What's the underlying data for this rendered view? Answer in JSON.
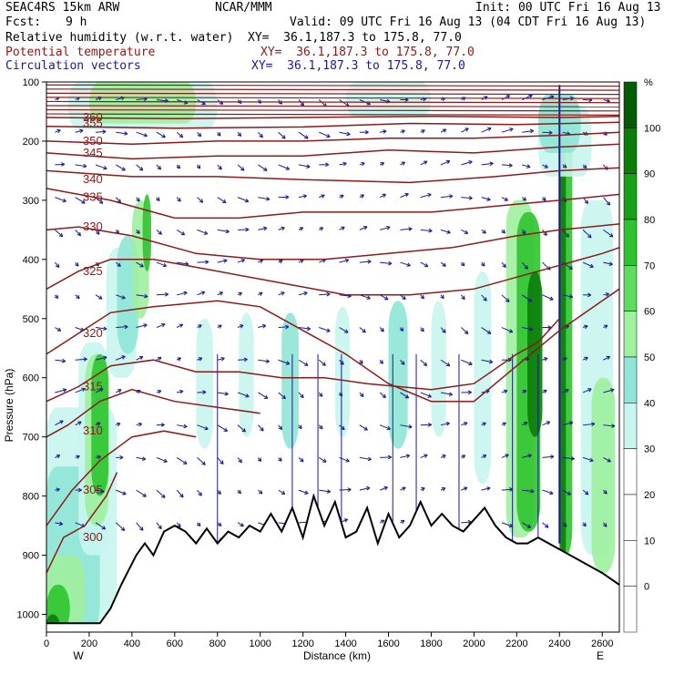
{
  "header": {
    "model": "SEAC4RS 15km ARW",
    "org": "NCAR/MMM",
    "init": "Init: 00 UTC Fri 16 Aug 13",
    "fcst_label": "Fcst:",
    "fcst_value": "9 h",
    "valid": "Valid: 09 UTC Fri 16 Aug 13 (04 CDT Fri 16 Aug 13)",
    "fields": [
      {
        "name": "Relative humidity (w.r.t. water)",
        "xy": "XY=  36.1,187.3 to 175.8, 77.0",
        "color": "#000000"
      },
      {
        "name": "Potential temperature",
        "xy": "XY=  36.1,187.3 to 175.8, 77.0",
        "color": "#8b1a1a"
      },
      {
        "name": "Circulation vectors",
        "xy": "XY=  36.1,187.3 to 175.8, 77.0",
        "color": "#1a1a8b"
      }
    ]
  },
  "chart_data": {
    "type": "cross-section",
    "xlabel": "Distance (km)",
    "ylabel": "Pressure (hPa)",
    "x_ticks": [
      0,
      200,
      400,
      600,
      800,
      1000,
      1200,
      1400,
      1600,
      1800,
      2000,
      2200,
      2400,
      2600
    ],
    "y_ticks": [
      100,
      200,
      300,
      400,
      500,
      600,
      700,
      800,
      900,
      1000
    ],
    "xlim": [
      0,
      2680
    ],
    "ylim": [
      1030,
      100
    ],
    "west_label": "W",
    "east_label": "E",
    "colorbar": {
      "unit": "%",
      "levels": [
        0,
        10,
        20,
        30,
        40,
        50,
        60,
        70,
        80,
        90,
        100
      ],
      "colors": [
        "#ffffff",
        "#ffffff",
        "#ffffff",
        "#ffffff",
        "#c8f5ee",
        "#8fe6d6",
        "#9ff09f",
        "#5fdc5f",
        "#2fc42f",
        "#17a017",
        "#0b7d0b",
        "#055a05"
      ]
    },
    "theta_contours": [
      {
        "label": "300",
        "p": 870,
        "pts": [
          [
            0,
            930
          ],
          [
            80,
            870
          ],
          [
            180,
            850
          ],
          [
            280,
            800
          ],
          [
            330,
            760
          ]
        ]
      },
      {
        "label": "305",
        "p": 790,
        "pts": [
          [
            0,
            850
          ],
          [
            120,
            790
          ],
          [
            250,
            740
          ],
          [
            400,
            700
          ],
          [
            550,
            690
          ],
          [
            700,
            700
          ]
        ]
      },
      {
        "label": "310",
        "p": 690,
        "pts": [
          [
            0,
            700
          ],
          [
            100,
            680
          ],
          [
            250,
            640
          ],
          [
            400,
            620
          ],
          [
            600,
            640
          ],
          [
            800,
            650
          ],
          [
            1000,
            660
          ]
        ]
      },
      {
        "label": "315",
        "p": 615,
        "pts": [
          [
            0,
            640
          ],
          [
            150,
            615
          ],
          [
            300,
            580
          ],
          [
            500,
            570
          ],
          [
            700,
            590
          ],
          [
            900,
            590
          ],
          [
            1100,
            600
          ],
          [
            1300,
            600
          ],
          [
            1500,
            610
          ],
          [
            1800,
            620
          ],
          [
            2000,
            610
          ],
          [
            2200,
            560
          ],
          [
            2300,
            540
          ],
          [
            2400,
            500
          ]
        ]
      },
      {
        "label": "320",
        "p": 525,
        "pts": [
          [
            0,
            560
          ],
          [
            150,
            525
          ],
          [
            300,
            490
          ],
          [
            500,
            480
          ],
          [
            800,
            470
          ],
          [
            1000,
            480
          ],
          [
            1200,
            520
          ],
          [
            1400,
            560
          ],
          [
            1600,
            610
          ],
          [
            1800,
            640
          ],
          [
            2000,
            640
          ],
          [
            2200,
            580
          ],
          [
            2400,
            520
          ],
          [
            2600,
            470
          ],
          [
            2680,
            450
          ]
        ]
      },
      {
        "label": "325",
        "p": 420,
        "pts": [
          [
            0,
            450
          ],
          [
            150,
            420
          ],
          [
            300,
            400
          ],
          [
            500,
            400
          ],
          [
            800,
            420
          ],
          [
            1100,
            440
          ],
          [
            1400,
            460
          ],
          [
            1700,
            460
          ],
          [
            2000,
            450
          ],
          [
            2200,
            430
          ],
          [
            2400,
            410
          ],
          [
            2600,
            390
          ],
          [
            2680,
            380
          ]
        ]
      },
      {
        "label": "330",
        "p": 345,
        "pts": [
          [
            0,
            350
          ],
          [
            150,
            345
          ],
          [
            400,
            360
          ],
          [
            700,
            390
          ],
          [
            1000,
            400
          ],
          [
            1300,
            400
          ],
          [
            1600,
            390
          ],
          [
            1900,
            380
          ],
          [
            2200,
            360
          ],
          [
            2400,
            350
          ],
          [
            2680,
            340
          ]
        ]
      },
      {
        "label": "335",
        "p": 295,
        "pts": [
          [
            0,
            280
          ],
          [
            300,
            300
          ],
          [
            600,
            330
          ],
          [
            900,
            330
          ],
          [
            1200,
            320
          ],
          [
            1500,
            320
          ],
          [
            1800,
            320
          ],
          [
            2100,
            310
          ],
          [
            2400,
            300
          ],
          [
            2680,
            290
          ]
        ]
      },
      {
        "label": "340",
        "p": 265,
        "pts": [
          [
            0,
            250
          ],
          [
            400,
            260
          ],
          [
            800,
            260
          ],
          [
            1200,
            265
          ],
          [
            1700,
            270
          ],
          [
            2100,
            260
          ],
          [
            2400,
            250
          ],
          [
            2680,
            245
          ]
        ]
      },
      {
        "label": "345",
        "p": 220,
        "pts": [
          [
            0,
            220
          ],
          [
            400,
            230
          ],
          [
            800,
            225
          ],
          [
            1200,
            225
          ],
          [
            1600,
            215
          ],
          [
            2000,
            220
          ],
          [
            2400,
            210
          ],
          [
            2680,
            205
          ]
        ]
      },
      {
        "label": "350",
        "p": 200,
        "pts": [
          [
            0,
            200
          ],
          [
            400,
            205
          ],
          [
            800,
            200
          ],
          [
            1200,
            200
          ],
          [
            1600,
            195
          ],
          [
            2000,
            195
          ],
          [
            2400,
            190
          ],
          [
            2680,
            185
          ]
        ]
      },
      {
        "label": "355",
        "p": 170,
        "pts": [
          [
            0,
            175
          ],
          [
            600,
            178
          ],
          [
            1200,
            176
          ],
          [
            1700,
            170
          ],
          [
            2200,
            172
          ],
          [
            2680,
            168
          ]
        ]
      },
      {
        "label": "360",
        "p": 160,
        "pts": [
          [
            0,
            160
          ],
          [
            600,
            162
          ],
          [
            1200,
            160
          ],
          [
            1800,
            158
          ],
          [
            2400,
            160
          ],
          [
            2680,
            158
          ]
        ]
      }
    ],
    "terrain": [
      [
        0,
        1015
      ],
      [
        150,
        1015
      ],
      [
        250,
        1015
      ],
      [
        300,
        990
      ],
      [
        350,
        950
      ],
      [
        420,
        900
      ],
      [
        460,
        880
      ],
      [
        500,
        900
      ],
      [
        550,
        860
      ],
      [
        600,
        850
      ],
      [
        650,
        860
      ],
      [
        700,
        880
      ],
      [
        750,
        855
      ],
      [
        800,
        880
      ],
      [
        850,
        860
      ],
      [
        900,
        870
      ],
      [
        950,
        850
      ],
      [
        1000,
        860
      ],
      [
        1050,
        830
      ],
      [
        1100,
        860
      ],
      [
        1150,
        820
      ],
      [
        1200,
        870
      ],
      [
        1250,
        800
      ],
      [
        1300,
        850
      ],
      [
        1350,
        810
      ],
      [
        1400,
        870
      ],
      [
        1450,
        860
      ],
      [
        1500,
        820
      ],
      [
        1550,
        880
      ],
      [
        1600,
        830
      ],
      [
        1650,
        870
      ],
      [
        1700,
        850
      ],
      [
        1750,
        810
      ],
      [
        1800,
        850
      ],
      [
        1850,
        830
      ],
      [
        1900,
        850
      ],
      [
        1950,
        860
      ],
      [
        2000,
        840
      ],
      [
        2050,
        820
      ],
      [
        2100,
        850
      ],
      [
        2150,
        870
      ],
      [
        2200,
        880
      ],
      [
        2250,
        880
      ],
      [
        2300,
        870
      ],
      [
        2350,
        880
      ],
      [
        2400,
        890
      ],
      [
        2500,
        910
      ],
      [
        2600,
        930
      ],
      [
        2680,
        950
      ]
    ]
  }
}
